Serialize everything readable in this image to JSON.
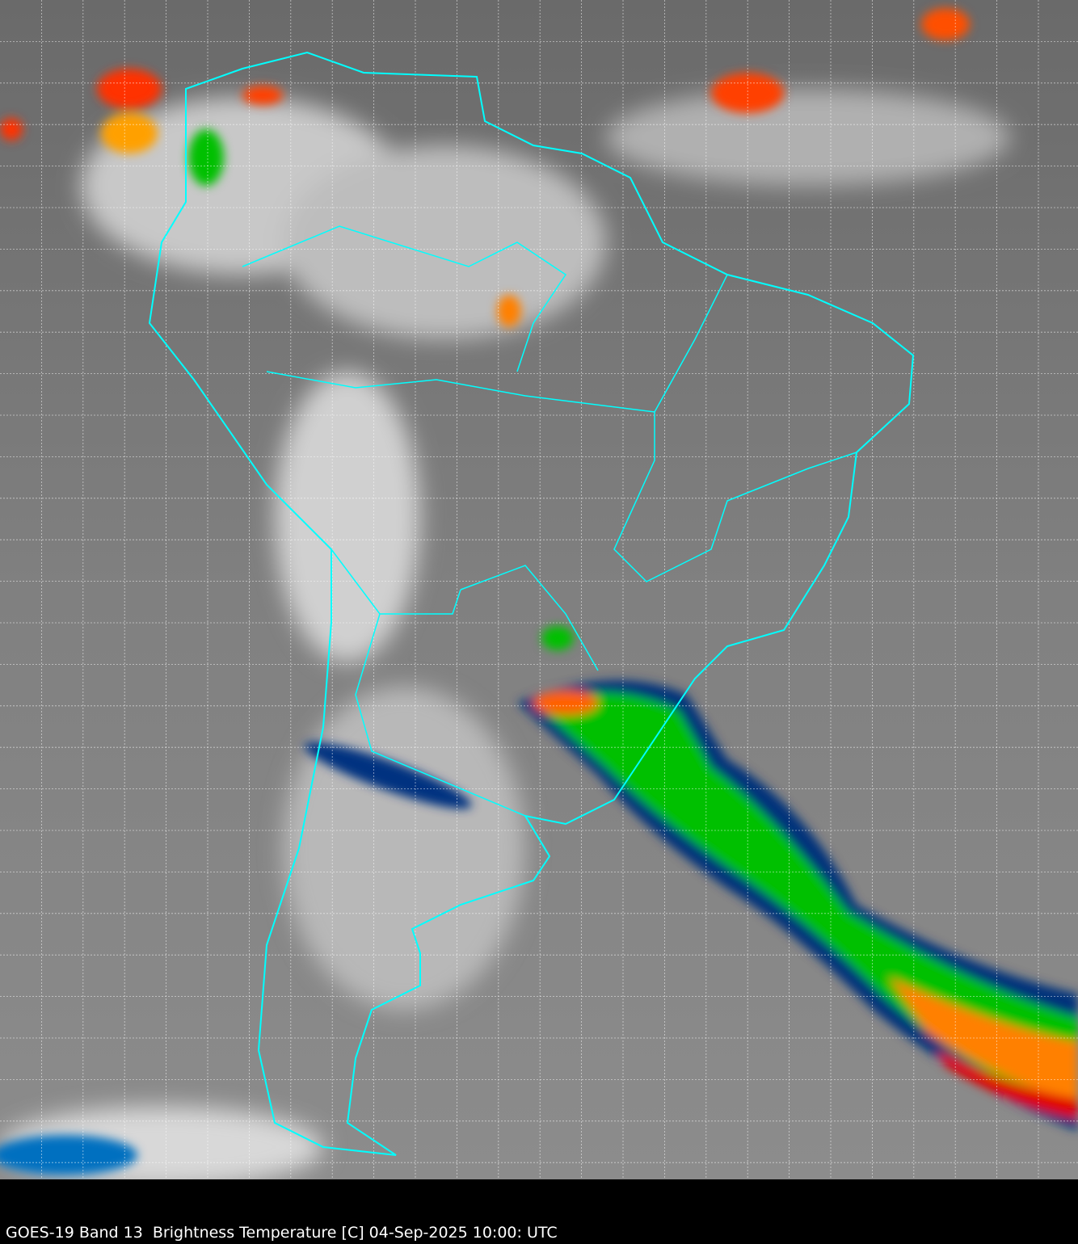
{
  "caption": "GOES-19 Band 13  Brightness Temperature [C] 04-Sep-2025 10:00: UTC",
  "colors": {
    "background_gray": "#7a7a7a",
    "coastline": "#00ffff",
    "grid": "#ffffff",
    "cold_cloud_scale": [
      "#003080",
      "#00c0ff",
      "#00ff00",
      "#ffff00",
      "#ff8000",
      "#ff0000",
      "#800000"
    ]
  }
}
